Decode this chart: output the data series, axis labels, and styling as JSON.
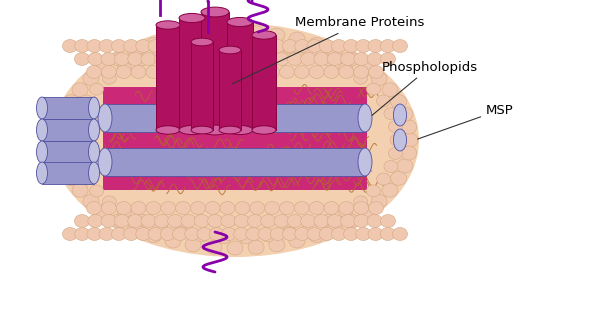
{
  "background_color": "#ffffff",
  "labels": {
    "membrane_proteins": "Membrane Proteins",
    "phospholipids": "Phospholopids",
    "msp": "MSP"
  },
  "colors": {
    "phospholipid_head": "#f0c8b0",
    "phospholipid_outline": "#d4a882",
    "phospholipid_tail": "#b87848",
    "msp_belt": "#9898cc",
    "msp_belt_highlight": "#c0c0e0",
    "msp_belt_dark": "#7070a8",
    "tm_protein_body": "#b01060",
    "tm_protein_highlight": "#d060a0",
    "tm_protein_top": "#e090b8",
    "inner_bg": "#cc2878",
    "loop_color": "#8800aa",
    "wavy_tail": "#b06828"
  }
}
